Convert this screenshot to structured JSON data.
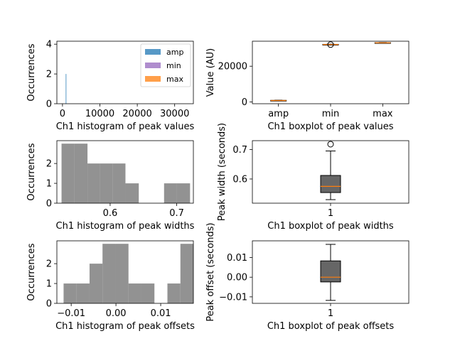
{
  "chart_data": [
    {
      "id": "hist-peak-values",
      "type": "bar",
      "xlabel": "Ch1 histogram of peak values",
      "ylabel": "Occurrences",
      "xlim": [
        -1500,
        35000
      ],
      "ylim": [
        0,
        4.2
      ],
      "xticks": [
        0,
        10000,
        20000,
        30000
      ],
      "xticklabels": [
        "0",
        "10000",
        "20000",
        "30000"
      ],
      "yticks": [
        0,
        2,
        4
      ],
      "yticklabels": [
        "0",
        "2",
        "4"
      ],
      "legend": "top-right",
      "series": [
        {
          "name": "amp",
          "color": "#1f77b4",
          "bins": [
            {
              "x0": 850,
              "x1": 900,
              "count": 2
            }
          ]
        },
        {
          "name": "min",
          "color": "#9467bd",
          "bins": []
        },
        {
          "name": "max",
          "color": "#ff7f0e",
          "bins": []
        }
      ]
    },
    {
      "id": "box-peak-values",
      "type": "box",
      "xlabel": "Ch1 boxplot of peak values",
      "ylabel": "Value (AU)",
      "ylim": [
        -1000,
        34000
      ],
      "yticks": [
        0,
        20000
      ],
      "yticklabels": [
        "0",
        "20000"
      ],
      "categories": [
        "amp",
        "min",
        "max"
      ],
      "boxes": [
        {
          "label": "amp",
          "whislo": 600,
          "q1": 700,
          "med": 800,
          "q3": 900,
          "whishi": 1000,
          "fliers": []
        },
        {
          "label": "min",
          "whislo": 31950,
          "q1": 32050,
          "med": 32150,
          "q3": 32250,
          "whishi": 32350,
          "fliers": [
            32100
          ]
        },
        {
          "label": "max",
          "whislo": 32900,
          "q1": 33000,
          "med": 33100,
          "q3": 33200,
          "whishi": 33300,
          "fliers": []
        }
      ]
    },
    {
      "id": "hist-peak-widths",
      "type": "bar",
      "xlabel": "Ch1 histogram of peak widths",
      "ylabel": "Occurrences",
      "xlim": [
        0.52,
        0.725
      ],
      "ylim": [
        0,
        3.15
      ],
      "xticks": [
        0.6,
        0.7
      ],
      "xticklabels": [
        "0.6",
        "0.7"
      ],
      "yticks": [
        0,
        1,
        2
      ],
      "yticklabels": [
        "0",
        "1",
        "2"
      ],
      "bins": [
        {
          "x0": 0.527,
          "x1": 0.546,
          "count": 3
        },
        {
          "x0": 0.546,
          "x1": 0.566,
          "count": 3
        },
        {
          "x0": 0.566,
          "x1": 0.585,
          "count": 2
        },
        {
          "x0": 0.585,
          "x1": 0.604,
          "count": 2
        },
        {
          "x0": 0.604,
          "x1": 0.623,
          "count": 2
        },
        {
          "x0": 0.623,
          "x1": 0.643,
          "count": 1
        },
        {
          "x0": 0.643,
          "x1": 0.662,
          "count": 0
        },
        {
          "x0": 0.662,
          "x1": 0.681,
          "count": 0
        },
        {
          "x0": 0.681,
          "x1": 0.7,
          "count": 1
        },
        {
          "x0": 0.7,
          "x1": 0.72,
          "count": 1
        }
      ]
    },
    {
      "id": "box-peak-widths",
      "type": "box",
      "xlabel": "Ch1 boxplot of peak widths",
      "ylabel": "Peak width (seconds)",
      "ylim": [
        0.518,
        0.73
      ],
      "yticks": [
        0.6,
        0.7
      ],
      "yticklabels": [
        "0.6",
        "0.7"
      ],
      "categories": [
        "1"
      ],
      "boxes": [
        {
          "label": "1",
          "whislo": 0.53,
          "q1": 0.554,
          "med": 0.575,
          "q3": 0.612,
          "whishi": 0.695,
          "fliers": [
            0.718
          ]
        }
      ]
    },
    {
      "id": "hist-peak-offsets",
      "type": "bar",
      "xlabel": "Ch1 histogram of peak offsets",
      "ylabel": "Occurrences",
      "xlim": [
        -0.0132,
        0.0173
      ],
      "ylim": [
        0,
        3.15
      ],
      "xticks": [
        -0.01,
        0.0,
        0.01
      ],
      "xticklabels": [
        "−0.01",
        "0.00",
        "0.01"
      ],
      "yticks": [
        0,
        1,
        2
      ],
      "yticklabels": [
        "0",
        "1",
        "2"
      ],
      "bins": [
        {
          "x0": -0.0117,
          "x1": -0.0088,
          "count": 1
        },
        {
          "x0": -0.0088,
          "x1": -0.0059,
          "count": 1
        },
        {
          "x0": -0.0059,
          "x1": -0.003,
          "count": 2
        },
        {
          "x0": -0.003,
          "x1": -0.0001,
          "count": 3
        },
        {
          "x0": -0.0001,
          "x1": 0.0028,
          "count": 3
        },
        {
          "x0": 0.0028,
          "x1": 0.0057,
          "count": 1
        },
        {
          "x0": 0.0057,
          "x1": 0.0086,
          "count": 1
        },
        {
          "x0": 0.0086,
          "x1": 0.0115,
          "count": 0
        },
        {
          "x0": 0.0115,
          "x1": 0.0144,
          "count": 1
        },
        {
          "x0": 0.0144,
          "x1": 0.0173,
          "count": 3
        }
      ]
    },
    {
      "id": "box-peak-offsets",
      "type": "box",
      "xlabel": "Ch1 boxplot of peak offsets",
      "ylabel": "Peak offset (seconds)",
      "ylim": [
        -0.0133,
        0.0185
      ],
      "yticks": [
        -0.01,
        0.0,
        0.01
      ],
      "yticklabels": [
        "−0.01",
        "0.00",
        "0.01"
      ],
      "categories": [
        "1"
      ],
      "boxes": [
        {
          "label": "1",
          "whislo": -0.0118,
          "q1": -0.0024,
          "med": 0.0,
          "q3": 0.0083,
          "whishi": 0.0167,
          "fliers": []
        }
      ]
    }
  ]
}
